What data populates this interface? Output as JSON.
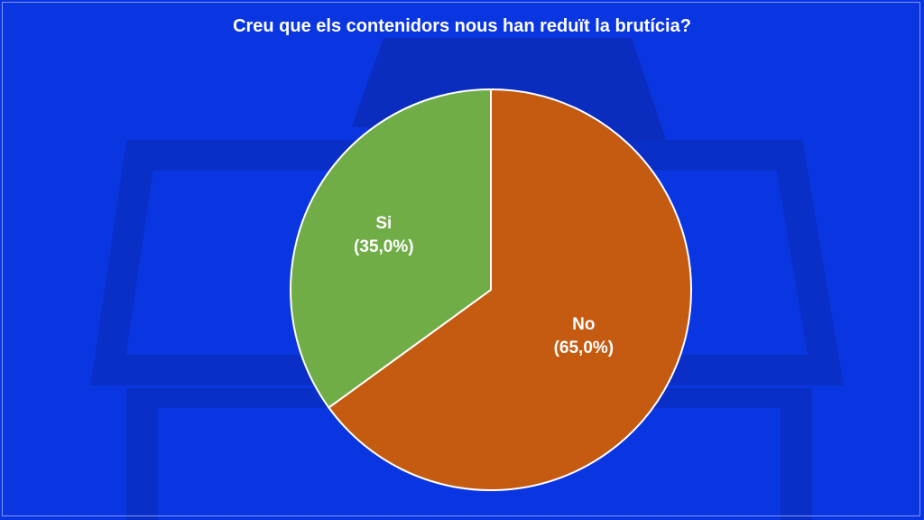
{
  "colors": {
    "background": "#0a36e2",
    "art": "#0a2fc6",
    "art_dark": "#0826a8"
  },
  "chart_data": {
    "type": "pie",
    "title": "Creu que els contenidors nous han reduït la brutícia?",
    "slices": [
      {
        "name": "No",
        "value": 65.0,
        "percent_label": "(65,0%)",
        "color": "#c55a11"
      },
      {
        "name": "Si",
        "value": 35.0,
        "percent_label": "(35,0%)",
        "color": "#70ad47"
      }
    ],
    "start_angle_deg": 0,
    "direction": "clockwise",
    "slice_border_color": "#ffffff",
    "legend": "none"
  }
}
